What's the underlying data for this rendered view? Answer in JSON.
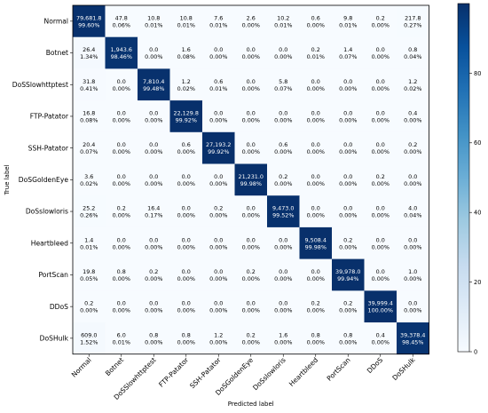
{
  "chart_data": {
    "type": "heatmap",
    "title": "",
    "xlabel": "Predicted label",
    "ylabel": "True label",
    "labels": [
      "Normal",
      "Botnet",
      "DoSSlowhttptest",
      "FTP-Patator",
      "SSH-Patator",
      "DoSGoldenEye",
      "DoSslowloris",
      "Heartbleed",
      "PortScan",
      "DDoS",
      "DoSHulk"
    ],
    "counts": [
      [
        "79,681.8",
        "47.8",
        "10.8",
        "10.8",
        "7.6",
        "2.6",
        "10.2",
        "0.6",
        "9.8",
        "0.2",
        "217.8"
      ],
      [
        "26.4",
        "1,943.6",
        "0.0",
        "1.6",
        "0.0",
        "0.0",
        "0.0",
        "0.2",
        "1.4",
        "0.0",
        "0.8"
      ],
      [
        "31.8",
        "0.0",
        "7,810.4",
        "1.2",
        "0.6",
        "0.0",
        "5.8",
        "0.0",
        "0.0",
        "0.0",
        "1.2"
      ],
      [
        "16.8",
        "0.0",
        "0.0",
        "22,129.8",
        "0.0",
        "0.0",
        "0.0",
        "0.0",
        "0.0",
        "0.0",
        "0.4"
      ],
      [
        "20.4",
        "0.0",
        "0.0",
        "0.6",
        "27,193.2",
        "0.0",
        "0.6",
        "0.0",
        "0.0",
        "0.0",
        "0.2"
      ],
      [
        "3.6",
        "0.0",
        "0.0",
        "0.0",
        "0.0",
        "21,231.0",
        "0.2",
        "0.0",
        "0.0",
        "0.2",
        "0.0"
      ],
      [
        "25.2",
        "0.2",
        "16.4",
        "0.0",
        "0.2",
        "0.0",
        "9,473.0",
        "0.0",
        "0.0",
        "0.0",
        "4.0"
      ],
      [
        "1.4",
        "0.0",
        "0.0",
        "0.0",
        "0.0",
        "0.0",
        "0.0",
        "9,508.4",
        "0.2",
        "0.0",
        "0.0"
      ],
      [
        "19.8",
        "0.8",
        "0.2",
        "0.0",
        "0.0",
        "0.2",
        "0.0",
        "0.0",
        "39,978.0",
        "0.0",
        "1.0"
      ],
      [
        "0.2",
        "0.0",
        "0.0",
        "0.0",
        "0.0",
        "0.0",
        "0.0",
        "0.2",
        "0.2",
        "39,999.4",
        "0.0"
      ],
      [
        "609.0",
        "6.0",
        "0.8",
        "0.8",
        "1.2",
        "0.2",
        "1.6",
        "0.8",
        "0.8",
        "0.4",
        "39,378.4"
      ]
    ],
    "percents": [
      [
        "99.60%",
        "0.06%",
        "0.01%",
        "0.01%",
        "0.01%",
        "0.00%",
        "0.01%",
        "0.00%",
        "0.01%",
        "0.00%",
        "0.27%"
      ],
      [
        "1.34%",
        "98.46%",
        "0.00%",
        "0.08%",
        "0.00%",
        "0.00%",
        "0.00%",
        "0.01%",
        "0.07%",
        "0.00%",
        "0.04%"
      ],
      [
        "0.41%",
        "0.00%",
        "99.48%",
        "0.02%",
        "0.01%",
        "0.00%",
        "0.07%",
        "0.00%",
        "0.00%",
        "0.00%",
        "0.02%"
      ],
      [
        "0.08%",
        "0.00%",
        "0.00%",
        "99.92%",
        "0.00%",
        "0.00%",
        "0.00%",
        "0.00%",
        "0.00%",
        "0.00%",
        "0.00%"
      ],
      [
        "0.07%",
        "0.00%",
        "0.00%",
        "0.00%",
        "99.92%",
        "0.00%",
        "0.00%",
        "0.00%",
        "0.00%",
        "0.00%",
        "0.00%"
      ],
      [
        "0.02%",
        "0.00%",
        "0.00%",
        "0.00%",
        "0.00%",
        "99.98%",
        "0.00%",
        "0.00%",
        "0.00%",
        "0.00%",
        "0.00%"
      ],
      [
        "0.26%",
        "0.00%",
        "0.17%",
        "0.00%",
        "0.00%",
        "0.00%",
        "99.52%",
        "0.00%",
        "0.00%",
        "0.00%",
        "0.04%"
      ],
      [
        "0.01%",
        "0.00%",
        "0.00%",
        "0.00%",
        "0.00%",
        "0.00%",
        "0.00%",
        "99.98%",
        "0.00%",
        "0.00%",
        "0.00%"
      ],
      [
        "0.05%",
        "0.00%",
        "0.00%",
        "0.00%",
        "0.00%",
        "0.00%",
        "0.00%",
        "0.00%",
        "99.94%",
        "0.00%",
        "0.00%"
      ],
      [
        "0.00%",
        "0.00%",
        "0.00%",
        "0.00%",
        "0.00%",
        "0.00%",
        "0.00%",
        "0.00%",
        "0.00%",
        "100.00%",
        "0.00%"
      ],
      [
        "1.52%",
        "0.01%",
        "0.00%",
        "0.00%",
        "0.00%",
        "0.00%",
        "0.00%",
        "0.00%",
        "0.00%",
        "0.00%",
        "98.45%"
      ]
    ],
    "colorbar": {
      "ticks": [
        0,
        20,
        40,
        60,
        80
      ],
      "range": [
        0,
        100
      ]
    },
    "colors": {
      "low": "#f7fbff",
      "high": "#08306b"
    }
  }
}
